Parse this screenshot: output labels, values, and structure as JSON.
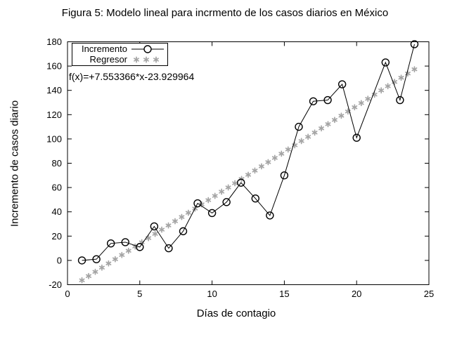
{
  "title": "Figura 5: Modelo lineal para incrmento de los casos diarios en México",
  "equation_label": "f(x)=+7.553366*x-23.929964",
  "legend": {
    "position": "top-left-inside",
    "items": [
      {
        "label": "Incremento",
        "marker": "open-circle-on-line"
      },
      {
        "label": "Regresor",
        "marker": "asterisks"
      }
    ]
  },
  "chart_data": {
    "type": "line",
    "title": "Figura 5: Modelo lineal para incrmento de los casos diarios en México",
    "xlabel": "Días de contagio",
    "ylabel": "Incremento de casos diario",
    "xlim": [
      0,
      25
    ],
    "ylim": [
      -20,
      180
    ],
    "xticks": [
      0,
      5,
      10,
      15,
      20,
      25
    ],
    "yticks": [
      -20,
      0,
      20,
      40,
      60,
      80,
      100,
      120,
      140,
      160,
      180
    ],
    "grid": false,
    "legend_position": "top-left",
    "colors": {
      "series": "#000000",
      "regression": "#a4a4a4",
      "background": "#ffffff"
    },
    "series": [
      {
        "name": "Incremento",
        "type": "line",
        "marker": "open-circle",
        "color": "#000000",
        "x": [
          1,
          2,
          3,
          4,
          5,
          6,
          7,
          8,
          9,
          10,
          11,
          12,
          13,
          14,
          15,
          16,
          17,
          18,
          19,
          20,
          22,
          23,
          24
        ],
        "y": [
          0,
          1,
          14,
          15,
          11,
          28,
          10,
          24,
          47,
          39,
          48,
          64,
          51,
          37,
          70,
          110,
          131,
          132,
          145,
          101,
          163,
          132,
          178
        ]
      },
      {
        "name": "Regresor",
        "type": "scatter",
        "marker": "asterisk",
        "color": "#a4a4a4",
        "equation": "f(x)=+7.553366*x-23.929964",
        "slope": 7.553366,
        "intercept": -23.929964,
        "x_start": 1,
        "x_end": 24,
        "n_points": 51
      }
    ],
    "annotations": [
      {
        "text": "f(x)=+7.553366*x-23.929964",
        "position": "below-legend"
      }
    ]
  }
}
